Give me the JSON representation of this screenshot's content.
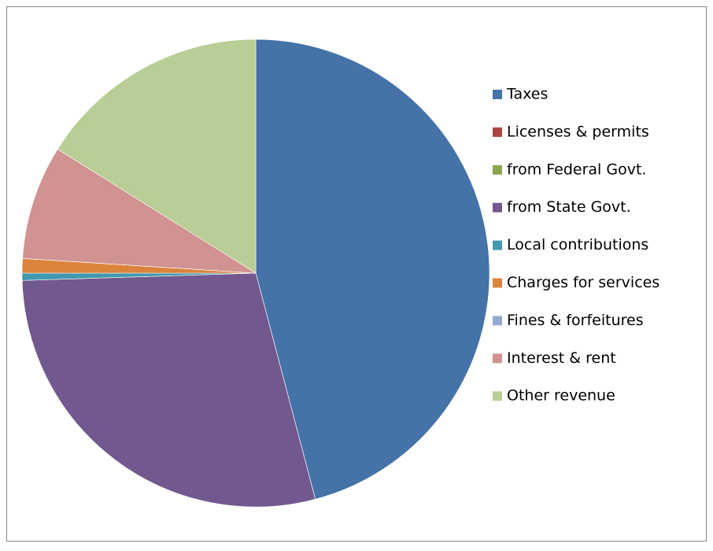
{
  "chart_data": {
    "type": "pie",
    "categories": [
      "Taxes",
      "Licenses & permits",
      "from Federal Govt.",
      "from State Govt.",
      "Local contributions",
      "Charges for services",
      "Fines & forfeitures",
      "Interest & rent",
      "Other revenue"
    ],
    "values": [
      45.9,
      0,
      0,
      28.6,
      0.5,
      1.0,
      0,
      7.9,
      16.1
    ],
    "colors": [
      "#4572a7",
      "#aa4643",
      "#89a54e",
      "#71588f",
      "#4198af",
      "#db843d",
      "#93a9cf",
      "#d19392",
      "#b9cd96"
    ],
    "legend": "right"
  }
}
